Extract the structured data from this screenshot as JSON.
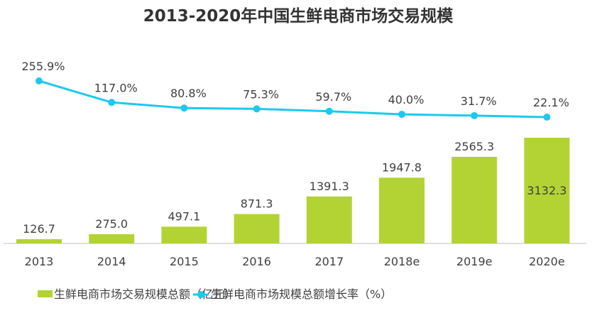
{
  "chart_data": {
    "type": "bar+line",
    "title": "2013-2020年中国生鲜电商市场交易规模",
    "categories": [
      "2013",
      "2014",
      "2015",
      "2016",
      "2017",
      "2018e",
      "2019e",
      "2020e"
    ],
    "series": [
      {
        "name": "生鲜电商市场交易规模总额（亿元）",
        "type": "bar",
        "color": "#b3d334",
        "values": [
          126.7,
          275.0,
          497.1,
          871.3,
          1391.3,
          1947.8,
          2565.3,
          3132.3
        ],
        "labels": [
          "126.7",
          "275.0",
          "497.1",
          "871.3",
          "1391.3",
          "1947.8",
          "2565.3",
          "3132.3"
        ]
      },
      {
        "name": "生鲜电商市场规模总额增长率（%）",
        "type": "line",
        "color": "#1ec8f0",
        "values": [
          255.9,
          117.0,
          80.8,
          75.3,
          59.7,
          40.0,
          31.7,
          22.1
        ],
        "labels": [
          "255.9%",
          "117.0%",
          "80.8%",
          "75.3%",
          "59.7%",
          "40.0%",
          "31.7%",
          "22.1%"
        ]
      }
    ],
    "legend_position": "bottom",
    "grid": false
  }
}
